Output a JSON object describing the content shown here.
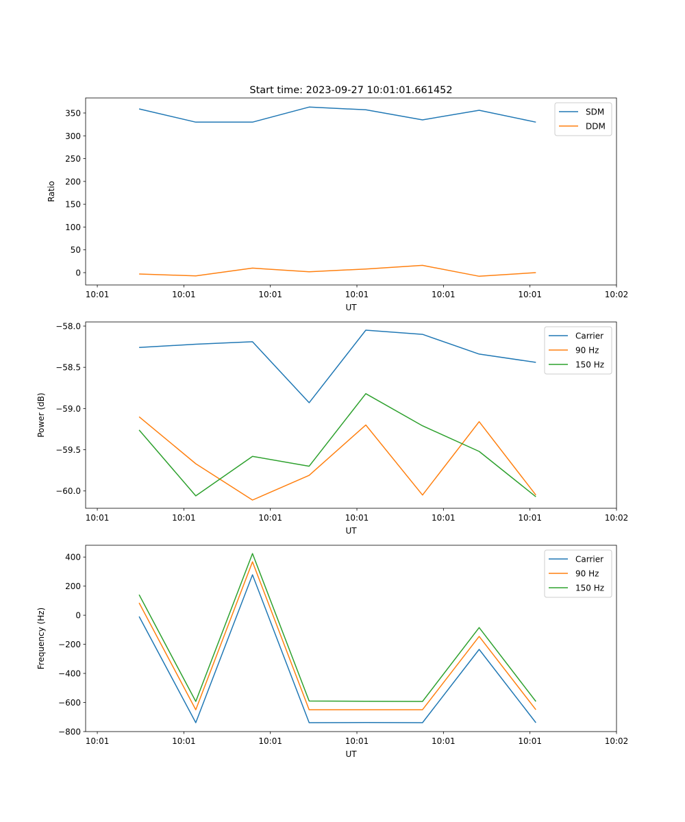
{
  "chart_data": [
    {
      "type": "line",
      "title": "Start time: 2023-09-27 10:01:01.661452",
      "xlabel": "UT",
      "ylabel": "Ratio",
      "x": [
        4.83,
        11.38,
        17.93,
        24.48,
        31.03,
        37.58,
        44.13,
        50.68
      ],
      "xlim": [
        -1.35,
        60
      ],
      "xticks": [
        0,
        10,
        20,
        30,
        40,
        50,
        60
      ],
      "xtick_labels": [
        "10:01",
        "10:01",
        "10:01",
        "10:01",
        "10:01",
        "10:01",
        "10:02"
      ],
      "ylim": [
        -27,
        383
      ],
      "yticks": [
        0,
        50,
        100,
        150,
        200,
        250,
        300,
        350
      ],
      "ytick_labels": [
        "0",
        "50",
        "100",
        "150",
        "200",
        "250",
        "300",
        "350"
      ],
      "legend": "top-right",
      "series": [
        {
          "name": "SDM",
          "color": "#1f77b4",
          "values": [
            359,
            330,
            330,
            363,
            357,
            335,
            356,
            330
          ]
        },
        {
          "name": "DDM",
          "color": "#ff7f0e",
          "values": [
            -3,
            -7,
            10,
            2,
            8,
            16,
            -8,
            0
          ]
        }
      ]
    },
    {
      "type": "line",
      "title": "",
      "xlabel": "UT",
      "ylabel": "Power (dB)",
      "x": [
        4.83,
        11.38,
        17.93,
        24.48,
        31.03,
        37.58,
        44.13,
        50.68
      ],
      "xlim": [
        -1.35,
        60
      ],
      "xticks": [
        0,
        10,
        20,
        30,
        40,
        50,
        60
      ],
      "xtick_labels": [
        "10:01",
        "10:01",
        "10:01",
        "10:01",
        "10:01",
        "10:01",
        "10:02"
      ],
      "ylim": [
        -60.21,
        -57.95
      ],
      "yticks": [
        -60.0,
        -59.5,
        -59.0,
        -58.5,
        -58.0
      ],
      "ytick_labels": [
        "−60.0",
        "−59.5",
        "−59.0",
        "−58.5",
        "−58.0"
      ],
      "legend": "top-right",
      "series": [
        {
          "name": "Carrier",
          "color": "#1f77b4",
          "values": [
            -58.26,
            -58.22,
            -58.19,
            -58.93,
            -58.05,
            -58.1,
            -58.34,
            -58.44
          ]
        },
        {
          "name": "90 Hz",
          "color": "#ff7f0e",
          "values": [
            -59.1,
            -59.67,
            -60.11,
            -59.81,
            -59.2,
            -60.05,
            -59.16,
            -60.05
          ]
        },
        {
          "name": "150 Hz",
          "color": "#2ca02c",
          "values": [
            -59.26,
            -60.06,
            -59.58,
            -59.7,
            -58.82,
            -59.21,
            -59.52,
            -60.07
          ]
        }
      ]
    },
    {
      "type": "line",
      "title": "",
      "xlabel": "UT",
      "ylabel": "Frequency (Hz)",
      "x": [
        4.83,
        11.38,
        17.93,
        24.48,
        31.03,
        37.58,
        44.13,
        50.68
      ],
      "xlim": [
        -1.35,
        60
      ],
      "xticks": [
        0,
        10,
        20,
        30,
        40,
        50,
        60
      ],
      "xtick_labels": [
        "10:01",
        "10:01",
        "10:01",
        "10:01",
        "10:01",
        "10:01",
        "10:02"
      ],
      "ylim": [
        -800,
        481
      ],
      "yticks": [
        -800,
        -600,
        -400,
        -200,
        0,
        200,
        400
      ],
      "ytick_labels": [
        "−800",
        "−600",
        "−400",
        "−200",
        "0",
        "200",
        "400"
      ],
      "legend": "top-right",
      "series": [
        {
          "name": "Carrier",
          "color": "#1f77b4",
          "values": [
            -9,
            -739,
            278,
            -739,
            -738,
            -739,
            -235,
            -739
          ]
        },
        {
          "name": "90 Hz",
          "color": "#ff7f0e",
          "values": [
            85,
            -650,
            367,
            -650,
            -650,
            -650,
            -146,
            -650
          ]
        },
        {
          "name": "150 Hz",
          "color": "#2ca02c",
          "values": [
            141,
            -593,
            424,
            -590,
            -592,
            -593,
            -85,
            -593
          ]
        }
      ]
    }
  ]
}
